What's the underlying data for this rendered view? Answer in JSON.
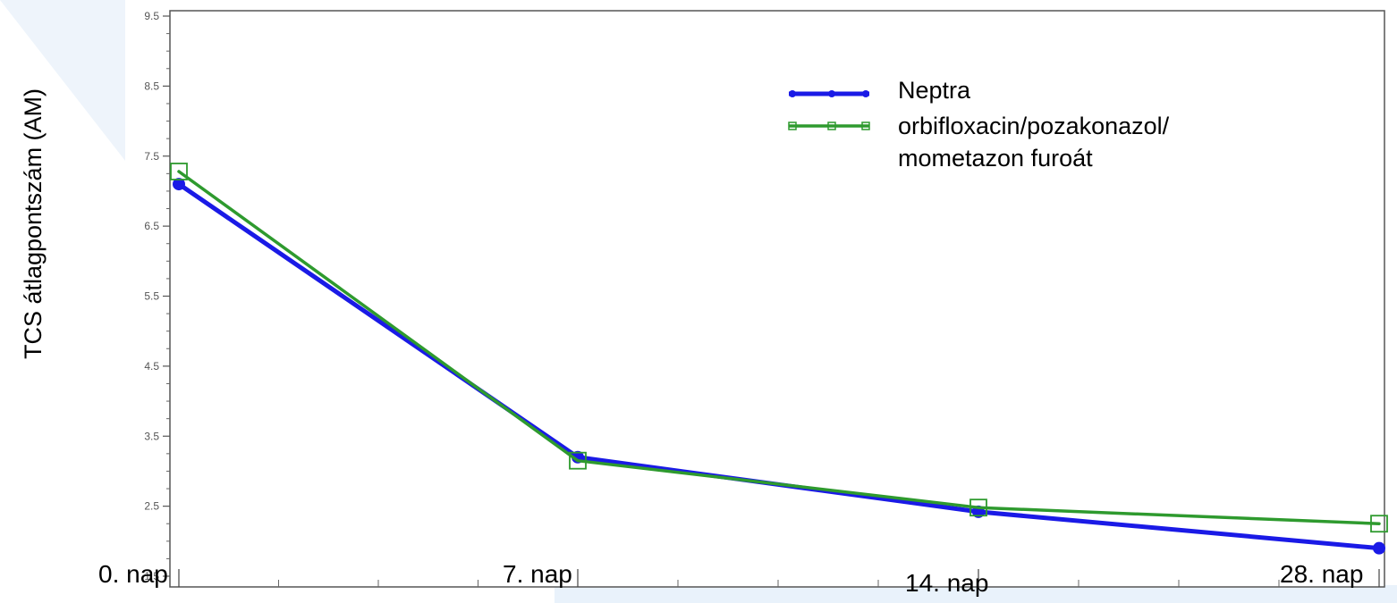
{
  "chart_data": {
    "type": "line",
    "ylabel": "TCS átlagpontszám (AM)",
    "ylim": [
      1.5,
      9.5
    ],
    "yticks": [
      "9.5",
      "8.5",
      "7.5",
      "6.5",
      "5.5",
      "4.5",
      "3.5",
      "2.5",
      "1.5"
    ],
    "x_labels": [
      "0. nap",
      "7. nap",
      "14. nap",
      "28. nap"
    ],
    "series": [
      {
        "name": "Neptra",
        "color": "#1a1ae6",
        "marker": "circle",
        "values": [
          7.1,
          3.2,
          2.42,
          1.9
        ]
      },
      {
        "name": "orbifloxacin/pozakonazol/ mometazon furoát",
        "name_lines": [
          "orbifloxacin/pozakonazol/",
          "mometazon furoát"
        ],
        "color": "#2e9a2e",
        "marker": "square",
        "values": [
          7.28,
          3.15,
          2.48,
          2.25
        ]
      }
    ],
    "legend": "top-right",
    "grid": false
  }
}
